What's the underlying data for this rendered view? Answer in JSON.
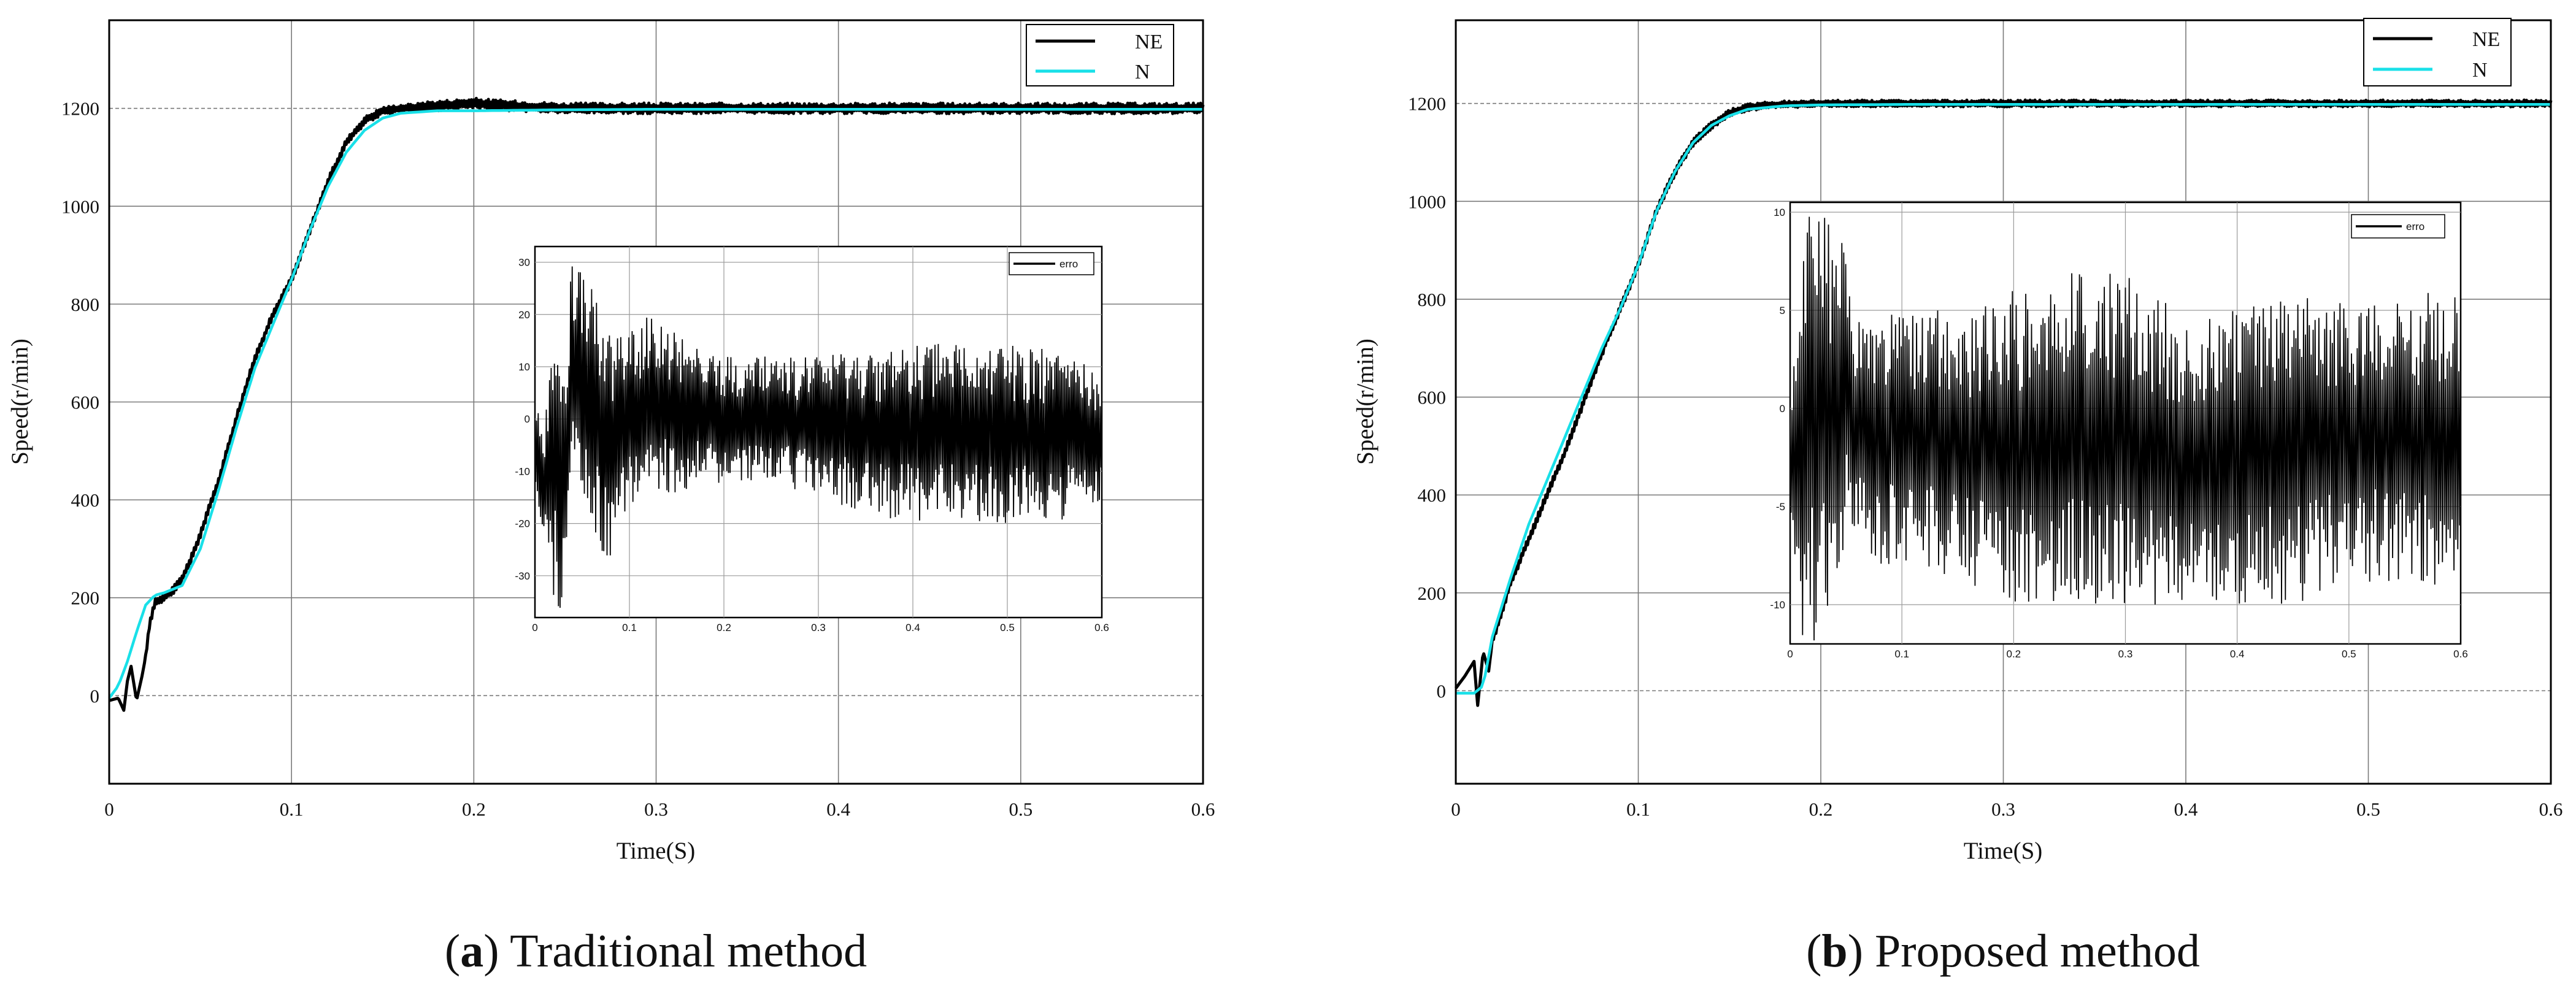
{
  "panels": [
    {
      "caption_letter": "a",
      "caption_text": "Traditional method",
      "chart_data": {
        "type": "line",
        "xlabel": "Time(S)",
        "ylabel": "Speed(r/min)",
        "xlim": [
          0,
          0.6
        ],
        "ylim": [
          -180,
          1380
        ],
        "xticks": [
          0,
          0.1,
          0.2,
          0.3,
          0.4,
          0.5,
          0.6
        ],
        "xtick_labels": [
          "0",
          "0.1",
          "0.2",
          "0.3",
          "0.4",
          "0.5",
          "0.6"
        ],
        "yticks": [
          0,
          200,
          400,
          600,
          800,
          1000,
          1200
        ],
        "ytick_labels": [
          "0",
          "200",
          "400",
          "600",
          "800",
          "1000",
          "1200"
        ],
        "grid": true,
        "legend_position": "top-right",
        "series": [
          {
            "name": "NE",
            "color": "#000000",
            "x": [
              0,
              0.005,
              0.008,
              0.01,
              0.012,
              0.015,
              0.018,
              0.02,
              0.022,
              0.025,
              0.03,
              0.035,
              0.04,
              0.045,
              0.05,
              0.06,
              0.07,
              0.08,
              0.09,
              0.1,
              0.11,
              0.12,
              0.13,
              0.14,
              0.15,
              0.16,
              0.18,
              0.2,
              0.22,
              0.25,
              0.3,
              0.35,
              0.4,
              0.45,
              0.5,
              0.55,
              0.6
            ],
            "y": [
              -10,
              -5,
              -30,
              30,
              60,
              -10,
              40,
              80,
              140,
              190,
              200,
              215,
              240,
              280,
              330,
              440,
              570,
              690,
              780,
              850,
              950,
              1050,
              1130,
              1175,
              1195,
              1200,
              1205,
              1210,
              1205,
              1200,
              1200,
              1200,
              1200,
              1200,
              1200,
              1200,
              1200
            ]
          },
          {
            "name": "N",
            "color": "#19e0e8",
            "x": [
              0,
              0.005,
              0.01,
              0.015,
              0.02,
              0.025,
              0.03,
              0.04,
              0.05,
              0.06,
              0.07,
              0.08,
              0.09,
              0.1,
              0.11,
              0.12,
              0.13,
              0.14,
              0.15,
              0.16,
              0.18,
              0.2,
              0.25,
              0.3,
              0.4,
              0.5,
              0.6
            ],
            "y": [
              -5,
              20,
              70,
              130,
              185,
              205,
              210,
              225,
              300,
              420,
              550,
              670,
              760,
              850,
              950,
              1040,
              1110,
              1155,
              1180,
              1190,
              1195,
              1195,
              1197,
              1198,
              1198,
              1198,
              1198
            ]
          }
        ],
        "inset": {
          "type": "line",
          "xlim": [
            0,
            0.6
          ],
          "ylim": [
            -38,
            33
          ],
          "xticks": [
            0,
            0.1,
            0.2,
            0.3,
            0.4,
            0.5,
            0.6
          ],
          "xtick_labels": [
            "0",
            "0.1",
            "0.2",
            "0.3",
            "0.4",
            "0.5",
            "0.6"
          ],
          "yticks": [
            -30,
            -20,
            -10,
            0,
            10,
            20,
            30
          ],
          "ytick_labels": [
            "-30",
            "-20",
            "-10",
            "0",
            "10",
            "20",
            "30"
          ],
          "legend_position": "top-right",
          "series": [
            {
              "name": "erro",
              "color": "#000000",
              "envelope_t": [
                0,
                0.01,
                0.02,
                0.03,
                0.04,
                0.05,
                0.06,
                0.08,
                0.1,
                0.12,
                0.15,
                0.2,
                0.25,
                0.3,
                0.35,
                0.4,
                0.45,
                0.5,
                0.55,
                0.6
              ],
              "envelope_hi": [
                2,
                0,
                25,
                8,
                32,
                30,
                25,
                18,
                17,
                20,
                17,
                12,
                12,
                12,
                13,
                15,
                15,
                15,
                13,
                10
              ],
              "envelope_lo": [
                -18,
                -25,
                -35,
                -37,
                -8,
                -15,
                -22,
                -28,
                -18,
                -15,
                -14,
                -12,
                -12,
                -15,
                -18,
                -20,
                -20,
                -20,
                -20,
                -16
              ]
            }
          ]
        }
      }
    },
    {
      "caption_letter": "b",
      "caption_text": "Proposed method",
      "chart_data": {
        "type": "line",
        "xlabel": "Time(S)",
        "ylabel": "Speed(r/min)",
        "xlim": [
          0,
          0.6
        ],
        "ylim": [
          -190,
          1370
        ],
        "xticks": [
          0,
          0.1,
          0.2,
          0.3,
          0.4,
          0.5,
          0.6
        ],
        "xtick_labels": [
          "0",
          "0.1",
          "0.2",
          "0.3",
          "0.4",
          "0.5",
          "0.6"
        ],
        "yticks": [
          0,
          200,
          400,
          600,
          800,
          1000,
          1200
        ],
        "ytick_labels": [
          "0",
          "200",
          "400",
          "600",
          "800",
          "1000",
          "1200"
        ],
        "grid": true,
        "legend_position": "top-right",
        "series": [
          {
            "name": "NE",
            "color": "#000000",
            "x": [
              0,
              0.005,
              0.01,
              0.012,
              0.015,
              0.018,
              0.02,
              0.025,
              0.03,
              0.04,
              0.05,
              0.06,
              0.07,
              0.08,
              0.09,
              0.1,
              0.11,
              0.12,
              0.13,
              0.14,
              0.15,
              0.16,
              0.18,
              0.2,
              0.25,
              0.3,
              0.4,
              0.5,
              0.6
            ],
            "y": [
              5,
              30,
              60,
              -30,
              80,
              40,
              100,
              160,
              220,
              310,
              400,
              490,
              590,
              690,
              780,
              870,
              980,
              1060,
              1120,
              1155,
              1180,
              1192,
              1198,
              1200,
              1200,
              1200,
              1200,
              1200,
              1200
            ]
          },
          {
            "name": "N",
            "color": "#19e0e8",
            "x": [
              0,
              0.01,
              0.015,
              0.02,
              0.03,
              0.04,
              0.05,
              0.06,
              0.07,
              0.08,
              0.09,
              0.1,
              0.11,
              0.12,
              0.13,
              0.14,
              0.15,
              0.16,
              0.18,
              0.2,
              0.25,
              0.3,
              0.4,
              0.5,
              0.6
            ],
            "y": [
              -5,
              -5,
              10,
              110,
              230,
              340,
              430,
              520,
              610,
              700,
              780,
              870,
              980,
              1060,
              1120,
              1155,
              1175,
              1188,
              1195,
              1197,
              1198,
              1198,
              1198,
              1198,
              1198
            ]
          }
        ],
        "inset": {
          "type": "line",
          "xlim": [
            0,
            0.6
          ],
          "ylim": [
            -12,
            10.5
          ],
          "xticks": [
            0,
            0.1,
            0.2,
            0.3,
            0.4,
            0.5,
            0.6
          ],
          "xtick_labels": [
            "0",
            "0.1",
            "0.2",
            "0.3",
            "0.4",
            "0.5",
            "0.6"
          ],
          "yticks": [
            -10,
            -5,
            0,
            5,
            10
          ],
          "ytick_labels": [
            "-10",
            "-5",
            "0",
            "5",
            "10"
          ],
          "legend_position": "top-right",
          "series": [
            {
              "name": "erro",
              "color": "#000000",
              "envelope_t": [
                0,
                0.01,
                0.02,
                0.03,
                0.04,
                0.05,
                0.06,
                0.08,
                0.1,
                0.12,
                0.15,
                0.2,
                0.25,
                0.3,
                0.35,
                0.4,
                0.45,
                0.5,
                0.55,
                0.6
              ],
              "envelope_hi": [
                0,
                10.5,
                10.5,
                10.5,
                10.5,
                8,
                5,
                5,
                5.5,
                5,
                5,
                6,
                7,
                7,
                5,
                5,
                6,
                6,
                6,
                6
              ],
              "envelope_lo": [
                -5,
                -12,
                -12,
                -12,
                -12,
                -6,
                -7,
                -8,
                -8,
                -8,
                -9,
                -10,
                -10,
                -10,
                -10,
                -10,
                -10,
                -9,
                -9,
                -9
              ]
            }
          ]
        }
      }
    }
  ]
}
